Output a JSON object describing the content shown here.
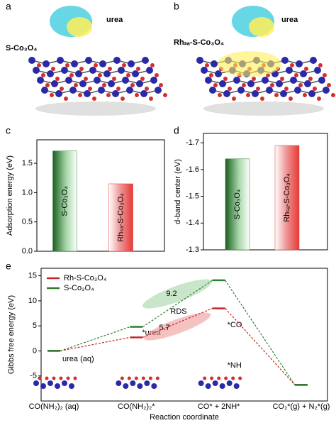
{
  "panels": [
    {
      "label": "a",
      "texts": [
        "urea",
        "S-Co₃O₄"
      ]
    },
    {
      "label": "b",
      "texts": [
        "urea",
        "Rhₛₐ-S-Co₃O₄"
      ]
    }
  ],
  "chart_data": [
    {
      "panel": "c",
      "type": "bar",
      "ylabel": "Adsorption energy (eV)",
      "categories": [
        "S-Co₃O₄",
        "Rhₛₐ-S-Co₃O₄"
      ],
      "values": [
        1.71,
        1.15
      ],
      "colors": [
        "#2e7d32",
        "#e53935"
      ],
      "ylim": [
        0,
        1.9
      ],
      "yticks": [
        {
          "value": 0,
          "label": "0.0"
        },
        {
          "value": 0.5,
          "label": "0.5"
        },
        {
          "value": 1,
          "label": "1.0"
        },
        {
          "value": 1.5,
          "label": "1.5"
        }
      ]
    },
    {
      "panel": "d",
      "type": "bar",
      "ylabel": "d-band center (eV)",
      "categories": [
        "S-Co₃O₄",
        "Rhₛₐ-S-Co₃O₄"
      ],
      "values": [
        -1.64,
        -1.69
      ],
      "colors": [
        "#2e7d32",
        "#e53935"
      ],
      "ylim": [
        -1.3,
        -1.735
      ],
      "yticks": [
        -1.3,
        -1.4,
        -1.5,
        -1.6,
        -1.7
      ]
    },
    {
      "panel": "e",
      "type": "line",
      "xlabel": "Reaction coordinate",
      "ylabel": "Gibbs free energy (eV)",
      "categories": [
        "CO(NH₂)₂ (aq)",
        "CO(NH₂)₂*",
        "CO* + 2NH*",
        "CO₂*(g) + N₂*(g)"
      ],
      "series": [
        {
          "name": "Rh-S-Co₃O₄",
          "color": "#c62828",
          "values": [
            0,
            2.7,
            8.5,
            -6.8
          ]
        },
        {
          "name": "S-Co₃O₄",
          "color": "#2e7d32",
          "values": [
            0,
            4.8,
            14.1,
            -6.8
          ]
        }
      ],
      "ylim": [
        -10,
        16.5
      ],
      "yticks": [
        -5,
        0,
        5,
        10,
        15
      ],
      "legend": "upper left",
      "annotations": [
        "9.2",
        "RDS",
        "5.7"
      ],
      "structure_labels": [
        "urea (aq)",
        "*urea",
        "*CO",
        "*NH"
      ]
    }
  ]
}
